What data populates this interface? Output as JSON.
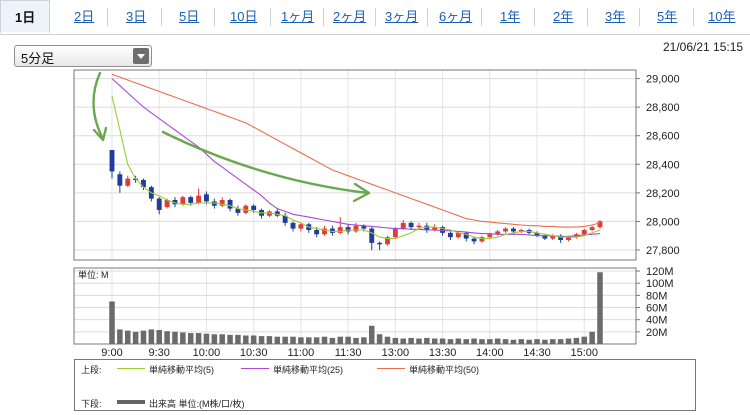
{
  "tabs": [
    {
      "label": "1日",
      "active": true
    },
    {
      "label": "2日"
    },
    {
      "label": "3日"
    },
    {
      "label": "5日"
    },
    {
      "label": "10日"
    },
    {
      "label": "1ヶ月"
    },
    {
      "label": "2ヶ月"
    },
    {
      "label": "3ヶ月"
    },
    {
      "label": "6ヶ月"
    },
    {
      "label": "1年"
    },
    {
      "label": "2年"
    },
    {
      "label": "3年"
    },
    {
      "label": "5年"
    },
    {
      "label": "10年"
    }
  ],
  "interval_select": {
    "value": "5分足"
  },
  "datetime": "21/06/21 15:15",
  "colors": {
    "up": "#e23a3a",
    "down": "#1f3d99",
    "ma5": "#9acd32",
    "ma25": "#a64cd9",
    "ma50": "#e8704f",
    "volume": "#6b6b6b",
    "annotation_arrow": "#6aa84f"
  },
  "chart_data": {
    "type": "candlestick",
    "price_axis": {
      "ticks": [
        "29,000",
        "28,800",
        "28,600",
        "28,400",
        "28,200",
        "28,000",
        "27,800"
      ],
      "ylim": [
        27730,
        29060
      ]
    },
    "volume_axis": {
      "label": "単位: M",
      "ticks": [
        "120M",
        "100M",
        "80M",
        "60M",
        "40M",
        "20M"
      ],
      "ylim": [
        0,
        125
      ]
    },
    "x_ticks": [
      "9:00",
      "9:30",
      "10:00",
      "10:30",
      "11:00",
      "11:30",
      "13:00",
      "13:30",
      "14:00",
      "14:30",
      "15:00"
    ],
    "candles": [
      [
        28500,
        28350,
        28380,
        28300
      ],
      [
        28330,
        28250,
        28350,
        28200
      ],
      [
        28250,
        28300,
        28320,
        28240
      ],
      [
        28300,
        28290,
        28320,
        28270
      ],
      [
        28290,
        28240,
        28300,
        28220
      ],
      [
        28240,
        28160,
        28250,
        28140
      ],
      [
        28160,
        28080,
        28170,
        28050
      ],
      [
        28100,
        28150,
        28160,
        28090
      ],
      [
        28150,
        28120,
        28170,
        28100
      ],
      [
        28120,
        28170,
        28180,
        28110
      ],
      [
        28170,
        28130,
        28180,
        28110
      ],
      [
        28130,
        28180,
        28230,
        28120
      ],
      [
        28190,
        28140,
        28210,
        28120
      ],
      [
        28140,
        28110,
        28160,
        28090
      ],
      [
        28110,
        28150,
        28170,
        28100
      ],
      [
        28150,
        28090,
        28160,
        28070
      ],
      [
        28090,
        28060,
        28110,
        28040
      ],
      [
        28060,
        28110,
        28120,
        28050
      ],
      [
        28110,
        28080,
        28120,
        28060
      ],
      [
        28080,
        28040,
        28090,
        28020
      ],
      [
        28040,
        28070,
        28080,
        28030
      ],
      [
        28070,
        28040,
        28090,
        28030
      ],
      [
        28040,
        27990,
        28060,
        27970
      ],
      [
        27990,
        27950,
        28000,
        27930
      ],
      [
        27950,
        27980,
        27990,
        27930
      ],
      [
        27980,
        27940,
        27990,
        27920
      ],
      [
        27940,
        27910,
        27960,
        27890
      ],
      [
        27910,
        27950,
        27970,
        27900
      ],
      [
        27950,
        27920,
        27970,
        27900
      ],
      [
        27920,
        27960,
        28030,
        27910
      ],
      [
        27960,
        27930,
        27980,
        27910
      ],
      [
        27930,
        27970,
        27990,
        27920
      ],
      [
        27970,
        27950,
        27980,
        27930
      ],
      [
        27950,
        27850,
        27960,
        27800
      ],
      [
        27850,
        27840,
        27860,
        27800
      ],
      [
        27840,
        27890,
        27900,
        27830
      ],
      [
        27890,
        27950,
        27960,
        27880
      ],
      [
        27950,
        27990,
        28010,
        27940
      ],
      [
        27990,
        27960,
        28000,
        27940
      ],
      [
        27960,
        27970,
        27990,
        27950
      ],
      [
        27970,
        27940,
        27990,
        27920
      ],
      [
        27940,
        27960,
        27980,
        27930
      ],
      [
        27960,
        27920,
        27970,
        27900
      ],
      [
        27920,
        27890,
        27930,
        27870
      ],
      [
        27890,
        27920,
        27930,
        27880
      ],
      [
        27920,
        27880,
        27930,
        27860
      ],
      [
        27880,
        27860,
        27890,
        27840
      ],
      [
        27860,
        27890,
        27900,
        27850
      ],
      [
        27890,
        27910,
        27920,
        27880
      ],
      [
        27910,
        27930,
        27940,
        27900
      ],
      [
        27930,
        27950,
        27960,
        27920
      ],
      [
        27950,
        27930,
        27960,
        27910
      ],
      [
        27930,
        27940,
        27950,
        27920
      ],
      [
        27940,
        27920,
        27950,
        27910
      ],
      [
        27920,
        27900,
        27930,
        27890
      ],
      [
        27900,
        27880,
        27910,
        27870
      ],
      [
        27880,
        27900,
        27910,
        27870
      ],
      [
        27900,
        27870,
        27910,
        27850
      ],
      [
        27870,
        27890,
        27900,
        27860
      ],
      [
        27890,
        27910,
        27920,
        27880
      ],
      [
        27910,
        27940,
        27950,
        27900
      ],
      [
        27940,
        27960,
        27970,
        27930
      ],
      [
        27960,
        28000,
        28010,
        27950
      ]
    ],
    "ma5": [
      28880,
      28640,
      28400,
      28300,
      28240,
      28200,
      28180,
      28150,
      28130,
      28120,
      28120,
      28130,
      28130,
      28130,
      28120,
      28110,
      28090,
      28080,
      28070,
      28060,
      28060,
      28050,
      28040,
      28010,
      27990,
      27960,
      27950,
      27940,
      27930,
      27930,
      27940,
      27940,
      27940,
      27920,
      27890,
      27880,
      27880,
      27900,
      27920,
      27950,
      27960,
      27960,
      27950,
      27940,
      27920,
      27910,
      27890,
      27880,
      27880,
      27890,
      27910,
      27920,
      27930,
      27930,
      27920,
      27910,
      27900,
      27890,
      27890,
      27890,
      27900,
      27920,
      27940
    ],
    "ma25": [
      29000,
      28950,
      28900,
      28850,
      28800,
      28760,
      28720,
      28680,
      28640,
      28600,
      28560,
      28520,
      28470,
      28420,
      28380,
      28340,
      28300,
      28260,
      28220,
      28180,
      28130,
      28090,
      28070,
      28050,
      28040,
      28030,
      28020,
      28010,
      28000,
      27990,
      27980,
      27975,
      27970,
      27965,
      27960,
      27955,
      27950,
      27950,
      27945,
      27945,
      27940,
      27940,
      27935,
      27935,
      27930,
      27925,
      27920,
      27915,
      27915,
      27910,
      27910,
      27910,
      27910,
      27905,
      27900,
      27900,
      27900,
      27895,
      27895,
      27900,
      27905,
      27910,
      27915
    ],
    "ma50": [
      29030,
      29010,
      28990,
      28970,
      28950,
      28930,
      28910,
      28890,
      28870,
      28850,
      28830,
      28810,
      28790,
      28770,
      28750,
      28730,
      28710,
      28690,
      28660,
      28630,
      28600,
      28570,
      28540,
      28510,
      28480,
      28450,
      28420,
      28390,
      28360,
      28340,
      28320,
      28300,
      28280,
      28260,
      28240,
      28220,
      28200,
      28180,
      28160,
      28140,
      28120,
      28100,
      28080,
      28060,
      28040,
      28020,
      28010,
      28000,
      27995,
      27990,
      27985,
      27980,
      27975,
      27970,
      27970,
      27965,
      27965,
      27960,
      27960,
      27960,
      27965,
      27975,
      27990
    ],
    "volume": [
      70,
      24,
      22,
      20,
      22,
      24,
      23,
      21,
      20,
      19,
      18,
      18,
      17,
      16,
      16,
      15,
      15,
      14,
      14,
      13,
      13,
      12,
      12,
      12,
      11,
      11,
      11,
      12,
      10,
      12,
      12,
      10,
      11,
      30,
      16,
      12,
      10,
      9,
      10,
      9,
      10,
      9,
      9,
      8,
      9,
      8,
      9,
      8,
      8,
      9,
      8,
      7,
      8,
      7,
      8,
      7,
      8,
      8,
      9,
      10,
      12,
      20,
      118
    ]
  },
  "legend": {
    "upper_label": "上段:",
    "lower_label": "下段:",
    "ma5_label": "単純移動平均(5)",
    "ma25_label": "単純移動平均(25)",
    "ma50_label": "単純移動平均(50)",
    "volume_label": "出来高 単位:(M株/口/枚)"
  }
}
